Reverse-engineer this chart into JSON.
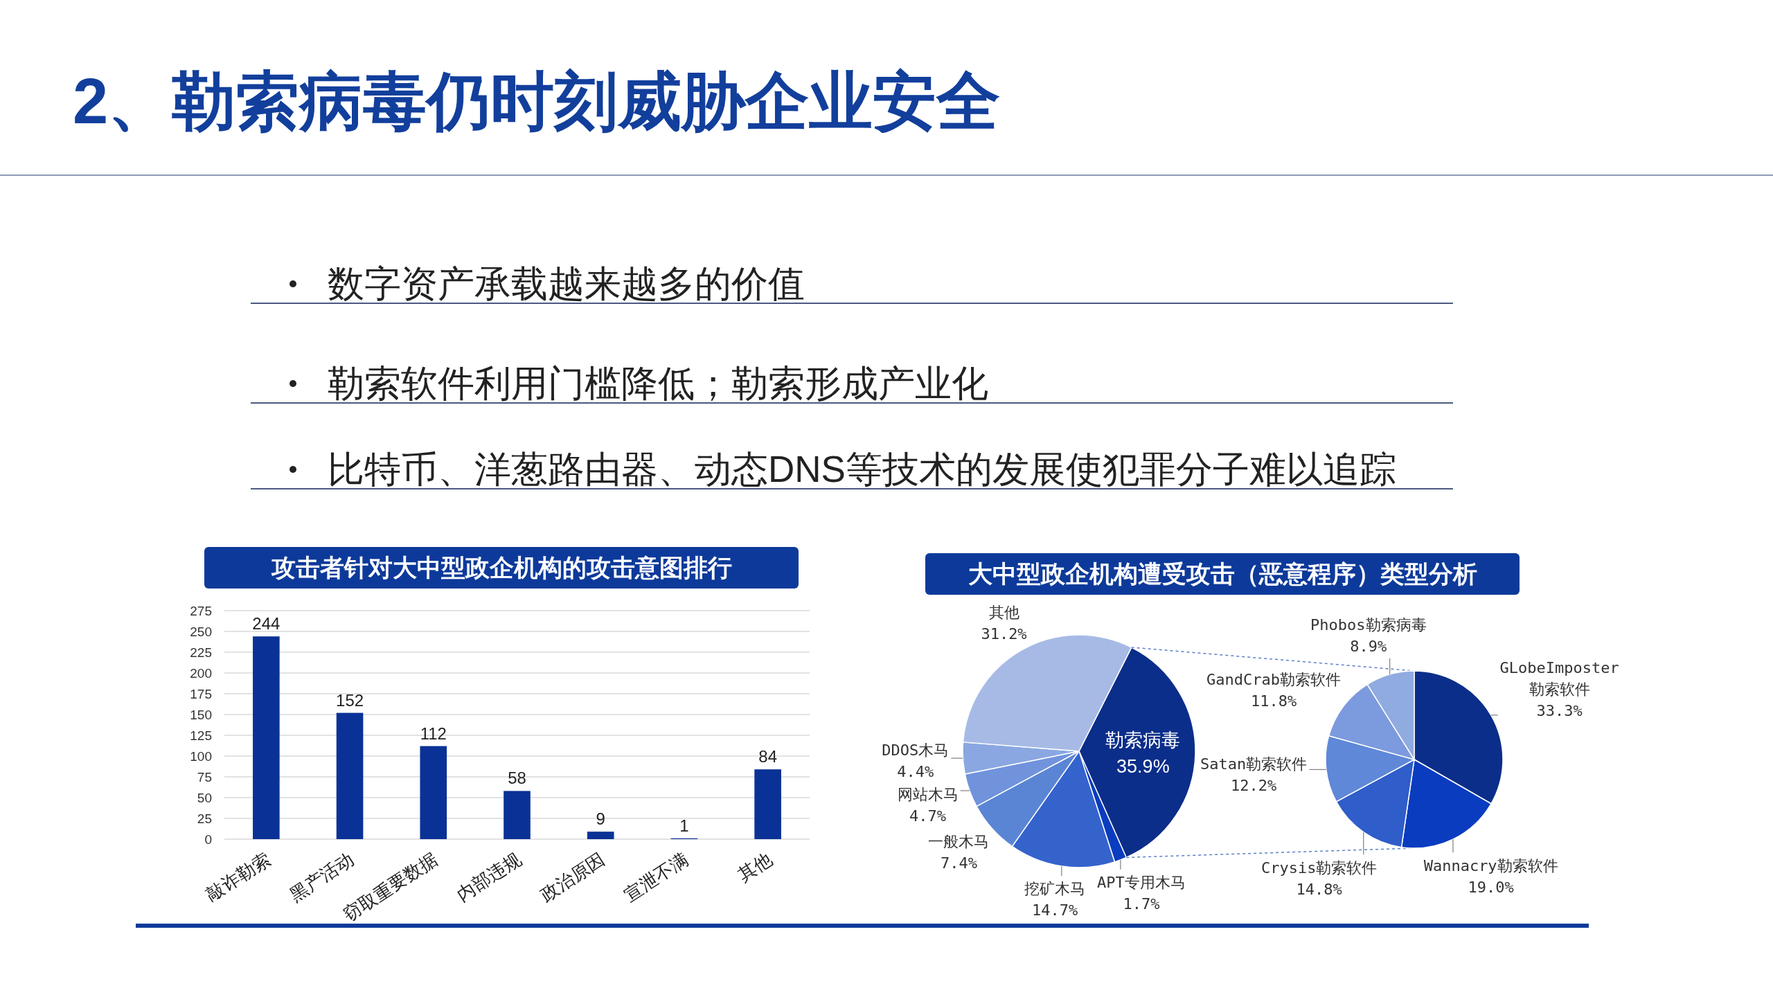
{
  "chart_data": [
    {
      "type": "other",
      "title": "2、勒索病毒仍时刻威胁企业安全",
      "annotations": [
        "数字资产承载越来越多的价值",
        "勒索软件利用门槛降低；勒索形成产业化",
        "比特币、洋葱路由器、动态DNS等技术的发展使犯罪分子难以追踪"
      ]
    },
    {
      "type": "bar",
      "title": "攻击者针对大中型政企机构的攻击意图排行",
      "categories": [
        "敲诈勒索",
        "黑产活动",
        "窃取重要数据",
        "内部违规",
        "政治原因",
        "宣泄不满",
        "其他"
      ],
      "values": [
        244,
        152,
        112,
        58,
        9,
        1,
        84
      ],
      "color": "#0a3296",
      "ylim": [
        0,
        275
      ],
      "yticks": [
        0,
        25,
        50,
        75,
        100,
        125,
        150,
        175,
        200,
        225,
        250,
        275
      ],
      "grid": "y",
      "data_labels": true
    },
    {
      "type": "pie",
      "title": "大中型政企机构遭受攻击（恶意程序）类型分析",
      "categories": [
        "勒索病毒",
        "APT专用木马",
        "挖矿木马",
        "一般木马",
        "网站木马",
        "DDOS木马",
        "其他"
      ],
      "values": [
        35.9,
        1.7,
        14.7,
        7.4,
        4.7,
        4.4,
        31.2
      ],
      "value_labels": [
        "35.9%",
        "1.7%",
        "14.7%",
        "7.4%",
        "4.7%",
        "4.4%",
        "31.2%"
      ],
      "colors": [
        "#0b2e8a",
        "#0a3cc0",
        "#3463cc",
        "#5a85d5",
        "#7093dc",
        "#8aa7e2",
        "#a7bae6"
      ]
    },
    {
      "type": "pie",
      "categories": [
        "GLobeImposter勒索软件",
        "Wannacry勒索软件",
        "Crysis勒索软件",
        "Satan勒索软件",
        "GandCrab勒索软件",
        "Phobos勒索病毒"
      ],
      "values": [
        33.3,
        19.0,
        14.8,
        12.2,
        11.8,
        8.9
      ],
      "value_labels": [
        "33.3%",
        "19.0%",
        "14.8%",
        "12.2%",
        "11.8%",
        "8.9%"
      ],
      "colors": [
        "#0b2e8a",
        "#0a3cc0",
        "#2f5dc9",
        "#5f88d8",
        "#7c9ade",
        "#90abe0"
      ]
    }
  ]
}
